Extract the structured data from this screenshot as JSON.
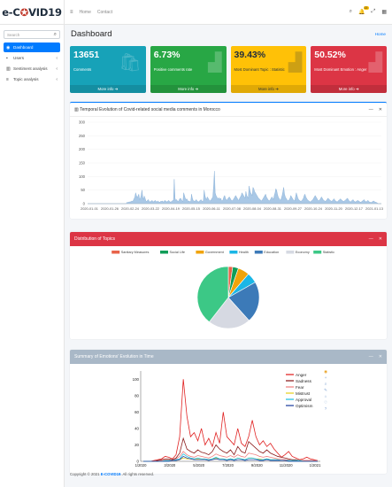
{
  "app": {
    "logo_left": "e-C",
    "logo_virus": "✪",
    "logo_right": "VID19"
  },
  "sidebar": {
    "search_placeholder": "Search",
    "items": [
      {
        "label": "Dashboard",
        "icon": "dashboard-icon",
        "active": true
      },
      {
        "label": "Users",
        "icon": "users-icon"
      },
      {
        "label": "Sentiment analysis",
        "icon": "chart-icon"
      },
      {
        "label": "Topic analysis",
        "icon": "list-icon"
      }
    ]
  },
  "topbar": {
    "links": [
      "Home",
      "Contact"
    ],
    "notification_count": "15"
  },
  "page": {
    "title": "Dashboard",
    "breadcrumb": "Home"
  },
  "info_boxes": [
    {
      "value": "13651",
      "label": "Comments",
      "more": "More info",
      "color": "#17a2b8"
    },
    {
      "value": "6.73%",
      "label": "Positive comments rate",
      "more": "More info",
      "color": "#28a745"
    },
    {
      "value": "39.43%",
      "label": "Most Dominant Topic : Statistic",
      "more": "More info",
      "color": "#ffc107"
    },
    {
      "value": "50.52%",
      "label": "Most Dominant Emotion : Anger",
      "more": "More info",
      "color": "#dc3545"
    }
  ],
  "cards": {
    "temporal_title": "Temporal Evolution of Covid-related social media comments in Morocco",
    "topics_title": "Distribution of Topics",
    "emotions_title": "Summary of Emotions' Evolution in Time"
  },
  "footer": {
    "prefix": "Copyright © 2021 ",
    "brand": "E-COVID19",
    "suffix": ". All rights reserved."
  },
  "chart_data": [
    {
      "type": "area",
      "title": "Temporal Evolution of Covid-related social media comments in Morocco",
      "ylim": [
        0,
        300
      ],
      "yticks": [
        0,
        50,
        100,
        150,
        200,
        250,
        300
      ],
      "xticks": [
        "2020-01-01",
        "2020-01-26",
        "2020-02-24",
        "2020-03-22",
        "2020-04-19",
        "2020-05-15",
        "2020-06-11",
        "2020-07-08",
        "2020-08-04",
        "2020-08-31",
        "2020-09-27",
        "2020-10-24",
        "2020-11-20",
        "2020-12-17",
        "2021-01-13"
      ],
      "values": [
        0,
        0,
        0,
        0,
        0,
        0,
        0,
        0,
        0,
        0,
        0,
        0,
        0,
        0,
        0,
        0,
        0,
        0,
        0,
        0,
        0,
        0,
        0,
        0,
        0,
        0,
        0,
        0,
        0,
        0,
        0,
        0,
        0,
        0,
        0,
        0,
        0,
        0,
        0,
        0,
        0,
        0,
        0,
        0,
        0,
        0,
        0,
        0,
        0,
        0,
        5,
        4,
        6,
        5,
        8,
        6,
        10,
        8,
        12,
        18,
        25,
        40,
        30,
        22,
        28,
        35,
        15,
        20,
        30,
        50,
        25,
        15,
        28,
        20,
        10,
        8,
        12,
        15,
        10,
        6,
        8,
        10,
        12,
        6,
        8,
        10,
        12,
        8,
        6,
        10,
        8,
        5,
        6,
        9,
        8,
        10,
        6,
        8,
        12,
        10,
        8,
        6,
        10,
        12,
        8,
        6,
        7,
        9,
        12,
        10,
        90,
        20,
        12,
        15,
        10,
        8,
        12,
        18,
        20,
        15,
        10,
        8,
        40,
        30,
        20,
        15,
        18,
        12,
        8,
        10,
        7,
        8,
        35,
        20,
        12,
        10,
        8,
        12,
        15,
        10,
        8,
        6,
        10,
        12,
        15,
        10,
        8,
        12,
        50,
        30,
        20,
        15,
        25,
        20,
        15,
        12,
        10,
        15,
        20,
        25,
        65,
        120,
        40,
        30,
        25,
        20,
        18,
        22,
        15,
        20,
        12,
        10,
        15,
        25,
        30,
        20,
        15,
        12,
        18,
        22,
        25,
        20,
        15,
        10,
        12,
        15,
        20,
        25,
        30,
        25,
        20,
        15,
        12,
        20,
        25,
        30,
        40,
        35,
        30,
        25,
        20,
        45,
        30,
        25,
        20,
        65,
        50,
        40,
        35,
        30,
        60,
        55,
        45,
        40,
        35,
        30,
        25,
        20,
        18,
        15,
        12,
        10,
        15,
        20,
        25,
        30,
        35,
        25,
        20,
        15,
        12,
        10,
        15,
        20,
        25,
        20,
        15,
        30,
        40,
        55,
        50,
        35,
        25,
        20,
        15,
        12,
        20,
        30,
        45,
        60,
        35,
        25,
        20,
        15,
        12,
        10,
        15,
        20,
        30,
        25,
        20,
        15,
        12,
        10,
        25,
        40,
        30,
        20,
        15,
        12,
        10,
        8,
        12,
        15,
        20,
        30,
        35,
        25,
        20,
        15,
        12,
        10,
        8,
        6,
        10,
        12,
        15,
        20,
        25,
        30,
        25,
        20,
        15,
        10,
        12,
        15,
        20,
        25,
        20,
        15,
        12,
        10,
        8,
        12,
        15,
        20,
        18,
        15,
        12,
        10,
        8,
        12,
        15,
        18,
        12,
        10,
        8,
        6,
        10,
        12,
        15,
        18,
        15,
        12,
        10,
        8,
        10,
        12,
        15,
        18,
        20,
        15,
        10,
        8,
        6,
        10,
        12,
        15,
        10,
        8,
        6,
        8,
        10,
        12,
        10,
        8,
        6,
        5,
        8,
        10,
        12,
        15,
        10,
        8,
        6,
        10,
        12,
        8,
        6,
        5,
        4,
        6,
        8,
        10,
        8,
        6,
        5,
        4,
        2,
        0,
        0,
        0,
        0,
        0
      ]
    },
    {
      "type": "pie",
      "title": "Distribution of Topics",
      "legend_placement": "top",
      "series": [
        {
          "name": "Sanitary Measures",
          "value": 0.023,
          "color": "#e8634a"
        },
        {
          "name": "Social Life",
          "value": 0.03,
          "color": "#0f9d58"
        },
        {
          "name": "Government",
          "value": 0.06,
          "color": "#f0a30a"
        },
        {
          "name": "Health",
          "value": 0.055,
          "color": "#1ab6e6"
        },
        {
          "name": "Education",
          "value": 0.215,
          "color": "#3c7ab8"
        },
        {
          "name": "Economy",
          "value": 0.222,
          "color": "#d6d9e2"
        },
        {
          "name": "Statistic",
          "value": 0.3943,
          "color": "#3cc886"
        }
      ]
    },
    {
      "type": "line",
      "title": "Summary of Emotions' Evolution in Time",
      "ylim": [
        0,
        110
      ],
      "yticks": [
        0,
        20,
        40,
        60,
        80,
        100
      ],
      "xticks": [
        "1/2020",
        "3/2020",
        "5/2020",
        "7/2020",
        "9/2020",
        "11/2020",
        "1/2021"
      ],
      "legend_placement": "top-right",
      "series": [
        {
          "name": "Anger",
          "color": "#e02020",
          "values": [
            0,
            0,
            0,
            1,
            2,
            3,
            6,
            5,
            3,
            8,
            30,
            100,
            55,
            30,
            35,
            25,
            40,
            20,
            28,
            18,
            35,
            22,
            60,
            30,
            25,
            20,
            40,
            22,
            18,
            30,
            50,
            30,
            20,
            25,
            18,
            22,
            15,
            10,
            5,
            8,
            12,
            6,
            4,
            2,
            3,
            5,
            3,
            2,
            1
          ]
        },
        {
          "name": "Sadness",
          "color": "#8b1a1a",
          "values": [
            0,
            0,
            0,
            0,
            1,
            2,
            3,
            3,
            2,
            4,
            10,
            28,
            15,
            12,
            10,
            14,
            11,
            10,
            8,
            12,
            20,
            15,
            12,
            10,
            14,
            8,
            18,
            12,
            10,
            24,
            20,
            16,
            12,
            10,
            14,
            10,
            8,
            6,
            5,
            4,
            3,
            2,
            2,
            1,
            1,
            1,
            1,
            1,
            1
          ]
        },
        {
          "name": "Fear",
          "color": "#f08080",
          "values": [
            0,
            0,
            0,
            0,
            0,
            1,
            2,
            2,
            1,
            3,
            6,
            12,
            8,
            6,
            5,
            7,
            6,
            5,
            4,
            6,
            9,
            7,
            6,
            5,
            7,
            5,
            8,
            6,
            5,
            10,
            9,
            8,
            6,
            5,
            6,
            5,
            4,
            3,
            3,
            2,
            2,
            1,
            1,
            1,
            1,
            1,
            1,
            1,
            1
          ]
        },
        {
          "name": "Mistrust",
          "color": "#e6d020",
          "values": [
            0,
            0,
            0,
            0,
            0,
            0,
            1,
            1,
            1,
            1,
            2,
            4,
            3,
            3,
            2,
            3,
            3,
            2,
            2,
            3,
            4,
            3,
            3,
            2,
            3,
            2,
            4,
            3,
            2,
            4,
            4,
            3,
            3,
            2,
            3,
            2,
            2,
            2,
            1,
            1,
            1,
            1,
            1,
            1,
            0,
            0,
            0,
            0,
            0
          ]
        },
        {
          "name": "Approval",
          "color": "#20c0e0",
          "values": [
            0,
            0,
            0,
            0,
            0,
            0,
            1,
            1,
            1,
            2,
            3,
            9,
            6,
            4,
            3,
            4,
            3,
            3,
            2,
            3,
            5,
            3,
            3,
            2,
            3,
            2,
            4,
            3,
            2,
            4,
            4,
            3,
            2,
            2,
            3,
            2,
            2,
            2,
            1,
            1,
            1,
            1,
            1,
            1,
            0,
            0,
            0,
            0,
            0
          ]
        },
        {
          "name": "Optimism",
          "color": "#2040a0",
          "values": [
            0,
            0,
            0,
            0,
            0,
            0,
            0,
            0,
            1,
            1,
            2,
            6,
            4,
            3,
            2,
            2,
            2,
            2,
            1,
            2,
            3,
            2,
            2,
            1,
            2,
            1,
            2,
            2,
            1,
            2,
            2,
            2,
            1,
            1,
            2,
            1,
            1,
            1,
            1,
            1,
            0,
            0,
            0,
            0,
            0,
            0,
            0,
            0,
            0
          ]
        }
      ]
    }
  ]
}
